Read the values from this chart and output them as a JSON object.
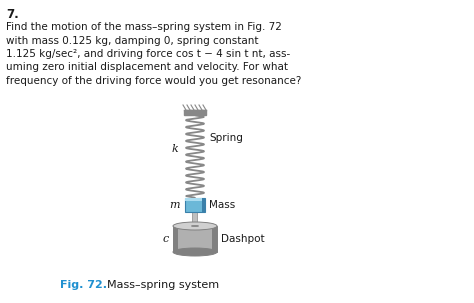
{
  "problem_number": "7.",
  "line1": "Find the motion of the mass–spring system in Fig. 72",
  "line2": "with mass 0.125 kg, damping 0, spring constant",
  "line3": "1.125 kg/sec², and driving force cos t − 4 sin t nt, ass-",
  "line4": "uming zero initial displacement and velocity. For what",
  "line5": "frequency of the driving force would you get resonance?",
  "fig_label": "Fig. 72.",
  "fig_caption": "  Mass–spring system",
  "label_k": "k",
  "label_spring": "Spring",
  "label_m": "m",
  "label_mass": "Mass",
  "label_c": "c",
  "label_dashpot": "Dashpot",
  "bg_color": "#ffffff",
  "text_color": "#1a1a1a",
  "fig_label_color": "#2090d0",
  "spring_color": "#888888",
  "ceiling_color": "#888888",
  "mass_fill": "#6bb8d8",
  "mass_edge": "#3a80aa",
  "dashpot_fill": "#b0b0b0",
  "dashpot_dark": "#808080",
  "dashpot_light": "#d0d0d0"
}
